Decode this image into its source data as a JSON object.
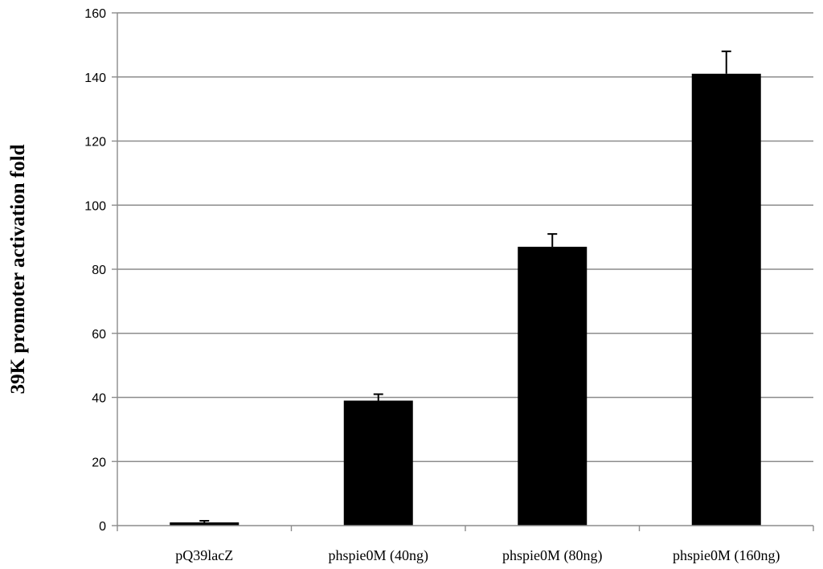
{
  "chart_data": {
    "type": "bar",
    "categories": [
      "pQ39lacZ",
      "phspie0M (40ng)",
      "phspie0M (80ng)",
      "phspie0M (160ng)"
    ],
    "values": [
      1,
      39,
      87,
      141
    ],
    "errors": [
      0.5,
      2,
      4,
      7
    ],
    "title": "",
    "xlabel": "",
    "ylabel": "39K promoter activation fold",
    "ylim": [
      0,
      160
    ],
    "yticks": [
      0,
      20,
      40,
      60,
      80,
      100,
      120,
      140,
      160
    ],
    "grid": true,
    "legend": "none",
    "bar_color": "#000000"
  }
}
